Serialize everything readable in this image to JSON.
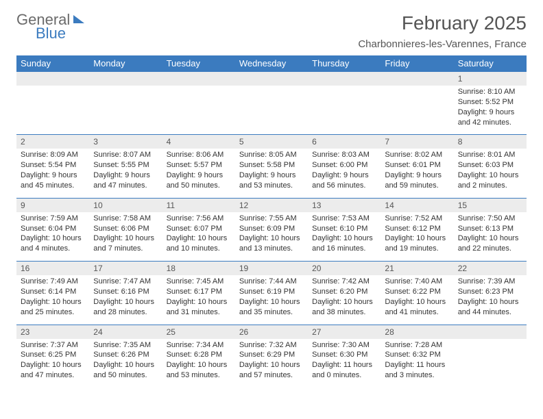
{
  "brand": {
    "line1": "General",
    "line2": "Blue"
  },
  "title": "February 2025",
  "location": "Charbonnieres-les-Varennes, France",
  "colors": {
    "header_bg": "#3b7bbf",
    "header_text": "#ffffff",
    "numrow_bg": "#ececec",
    "divider": "#3b7bbf",
    "page_bg": "#ffffff",
    "body_text": "#333333",
    "title_text": "#555555",
    "logo_gray": "#6a6a6a",
    "logo_blue": "#3b7bbf"
  },
  "day_names": [
    "Sunday",
    "Monday",
    "Tuesday",
    "Wednesday",
    "Thursday",
    "Friday",
    "Saturday"
  ],
  "weeks": [
    {
      "nums": [
        "",
        "",
        "",
        "",
        "",
        "",
        "1"
      ],
      "cells": [
        null,
        null,
        null,
        null,
        null,
        null,
        {
          "sunrise": "Sunrise: 8:10 AM",
          "sunset": "Sunset: 5:52 PM",
          "day1": "Daylight: 9 hours",
          "day2": "and 42 minutes."
        }
      ]
    },
    {
      "nums": [
        "2",
        "3",
        "4",
        "5",
        "6",
        "7",
        "8"
      ],
      "cells": [
        {
          "sunrise": "Sunrise: 8:09 AM",
          "sunset": "Sunset: 5:54 PM",
          "day1": "Daylight: 9 hours",
          "day2": "and 45 minutes."
        },
        {
          "sunrise": "Sunrise: 8:07 AM",
          "sunset": "Sunset: 5:55 PM",
          "day1": "Daylight: 9 hours",
          "day2": "and 47 minutes."
        },
        {
          "sunrise": "Sunrise: 8:06 AM",
          "sunset": "Sunset: 5:57 PM",
          "day1": "Daylight: 9 hours",
          "day2": "and 50 minutes."
        },
        {
          "sunrise": "Sunrise: 8:05 AM",
          "sunset": "Sunset: 5:58 PM",
          "day1": "Daylight: 9 hours",
          "day2": "and 53 minutes."
        },
        {
          "sunrise": "Sunrise: 8:03 AM",
          "sunset": "Sunset: 6:00 PM",
          "day1": "Daylight: 9 hours",
          "day2": "and 56 minutes."
        },
        {
          "sunrise": "Sunrise: 8:02 AM",
          "sunset": "Sunset: 6:01 PM",
          "day1": "Daylight: 9 hours",
          "day2": "and 59 minutes."
        },
        {
          "sunrise": "Sunrise: 8:01 AM",
          "sunset": "Sunset: 6:03 PM",
          "day1": "Daylight: 10 hours",
          "day2": "and 2 minutes."
        }
      ]
    },
    {
      "nums": [
        "9",
        "10",
        "11",
        "12",
        "13",
        "14",
        "15"
      ],
      "cells": [
        {
          "sunrise": "Sunrise: 7:59 AM",
          "sunset": "Sunset: 6:04 PM",
          "day1": "Daylight: 10 hours",
          "day2": "and 4 minutes."
        },
        {
          "sunrise": "Sunrise: 7:58 AM",
          "sunset": "Sunset: 6:06 PM",
          "day1": "Daylight: 10 hours",
          "day2": "and 7 minutes."
        },
        {
          "sunrise": "Sunrise: 7:56 AM",
          "sunset": "Sunset: 6:07 PM",
          "day1": "Daylight: 10 hours",
          "day2": "and 10 minutes."
        },
        {
          "sunrise": "Sunrise: 7:55 AM",
          "sunset": "Sunset: 6:09 PM",
          "day1": "Daylight: 10 hours",
          "day2": "and 13 minutes."
        },
        {
          "sunrise": "Sunrise: 7:53 AM",
          "sunset": "Sunset: 6:10 PM",
          "day1": "Daylight: 10 hours",
          "day2": "and 16 minutes."
        },
        {
          "sunrise": "Sunrise: 7:52 AM",
          "sunset": "Sunset: 6:12 PM",
          "day1": "Daylight: 10 hours",
          "day2": "and 19 minutes."
        },
        {
          "sunrise": "Sunrise: 7:50 AM",
          "sunset": "Sunset: 6:13 PM",
          "day1": "Daylight: 10 hours",
          "day2": "and 22 minutes."
        }
      ]
    },
    {
      "nums": [
        "16",
        "17",
        "18",
        "19",
        "20",
        "21",
        "22"
      ],
      "cells": [
        {
          "sunrise": "Sunrise: 7:49 AM",
          "sunset": "Sunset: 6:14 PM",
          "day1": "Daylight: 10 hours",
          "day2": "and 25 minutes."
        },
        {
          "sunrise": "Sunrise: 7:47 AM",
          "sunset": "Sunset: 6:16 PM",
          "day1": "Daylight: 10 hours",
          "day2": "and 28 minutes."
        },
        {
          "sunrise": "Sunrise: 7:45 AM",
          "sunset": "Sunset: 6:17 PM",
          "day1": "Daylight: 10 hours",
          "day2": "and 31 minutes."
        },
        {
          "sunrise": "Sunrise: 7:44 AM",
          "sunset": "Sunset: 6:19 PM",
          "day1": "Daylight: 10 hours",
          "day2": "and 35 minutes."
        },
        {
          "sunrise": "Sunrise: 7:42 AM",
          "sunset": "Sunset: 6:20 PM",
          "day1": "Daylight: 10 hours",
          "day2": "and 38 minutes."
        },
        {
          "sunrise": "Sunrise: 7:40 AM",
          "sunset": "Sunset: 6:22 PM",
          "day1": "Daylight: 10 hours",
          "day2": "and 41 minutes."
        },
        {
          "sunrise": "Sunrise: 7:39 AM",
          "sunset": "Sunset: 6:23 PM",
          "day1": "Daylight: 10 hours",
          "day2": "and 44 minutes."
        }
      ]
    },
    {
      "nums": [
        "23",
        "24",
        "25",
        "26",
        "27",
        "28",
        ""
      ],
      "cells": [
        {
          "sunrise": "Sunrise: 7:37 AM",
          "sunset": "Sunset: 6:25 PM",
          "day1": "Daylight: 10 hours",
          "day2": "and 47 minutes."
        },
        {
          "sunrise": "Sunrise: 7:35 AM",
          "sunset": "Sunset: 6:26 PM",
          "day1": "Daylight: 10 hours",
          "day2": "and 50 minutes."
        },
        {
          "sunrise": "Sunrise: 7:34 AM",
          "sunset": "Sunset: 6:28 PM",
          "day1": "Daylight: 10 hours",
          "day2": "and 53 minutes."
        },
        {
          "sunrise": "Sunrise: 7:32 AM",
          "sunset": "Sunset: 6:29 PM",
          "day1": "Daylight: 10 hours",
          "day2": "and 57 minutes."
        },
        {
          "sunrise": "Sunrise: 7:30 AM",
          "sunset": "Sunset: 6:30 PM",
          "day1": "Daylight: 11 hours",
          "day2": "and 0 minutes."
        },
        {
          "sunrise": "Sunrise: 7:28 AM",
          "sunset": "Sunset: 6:32 PM",
          "day1": "Daylight: 11 hours",
          "day2": "and 3 minutes."
        },
        null
      ]
    }
  ]
}
